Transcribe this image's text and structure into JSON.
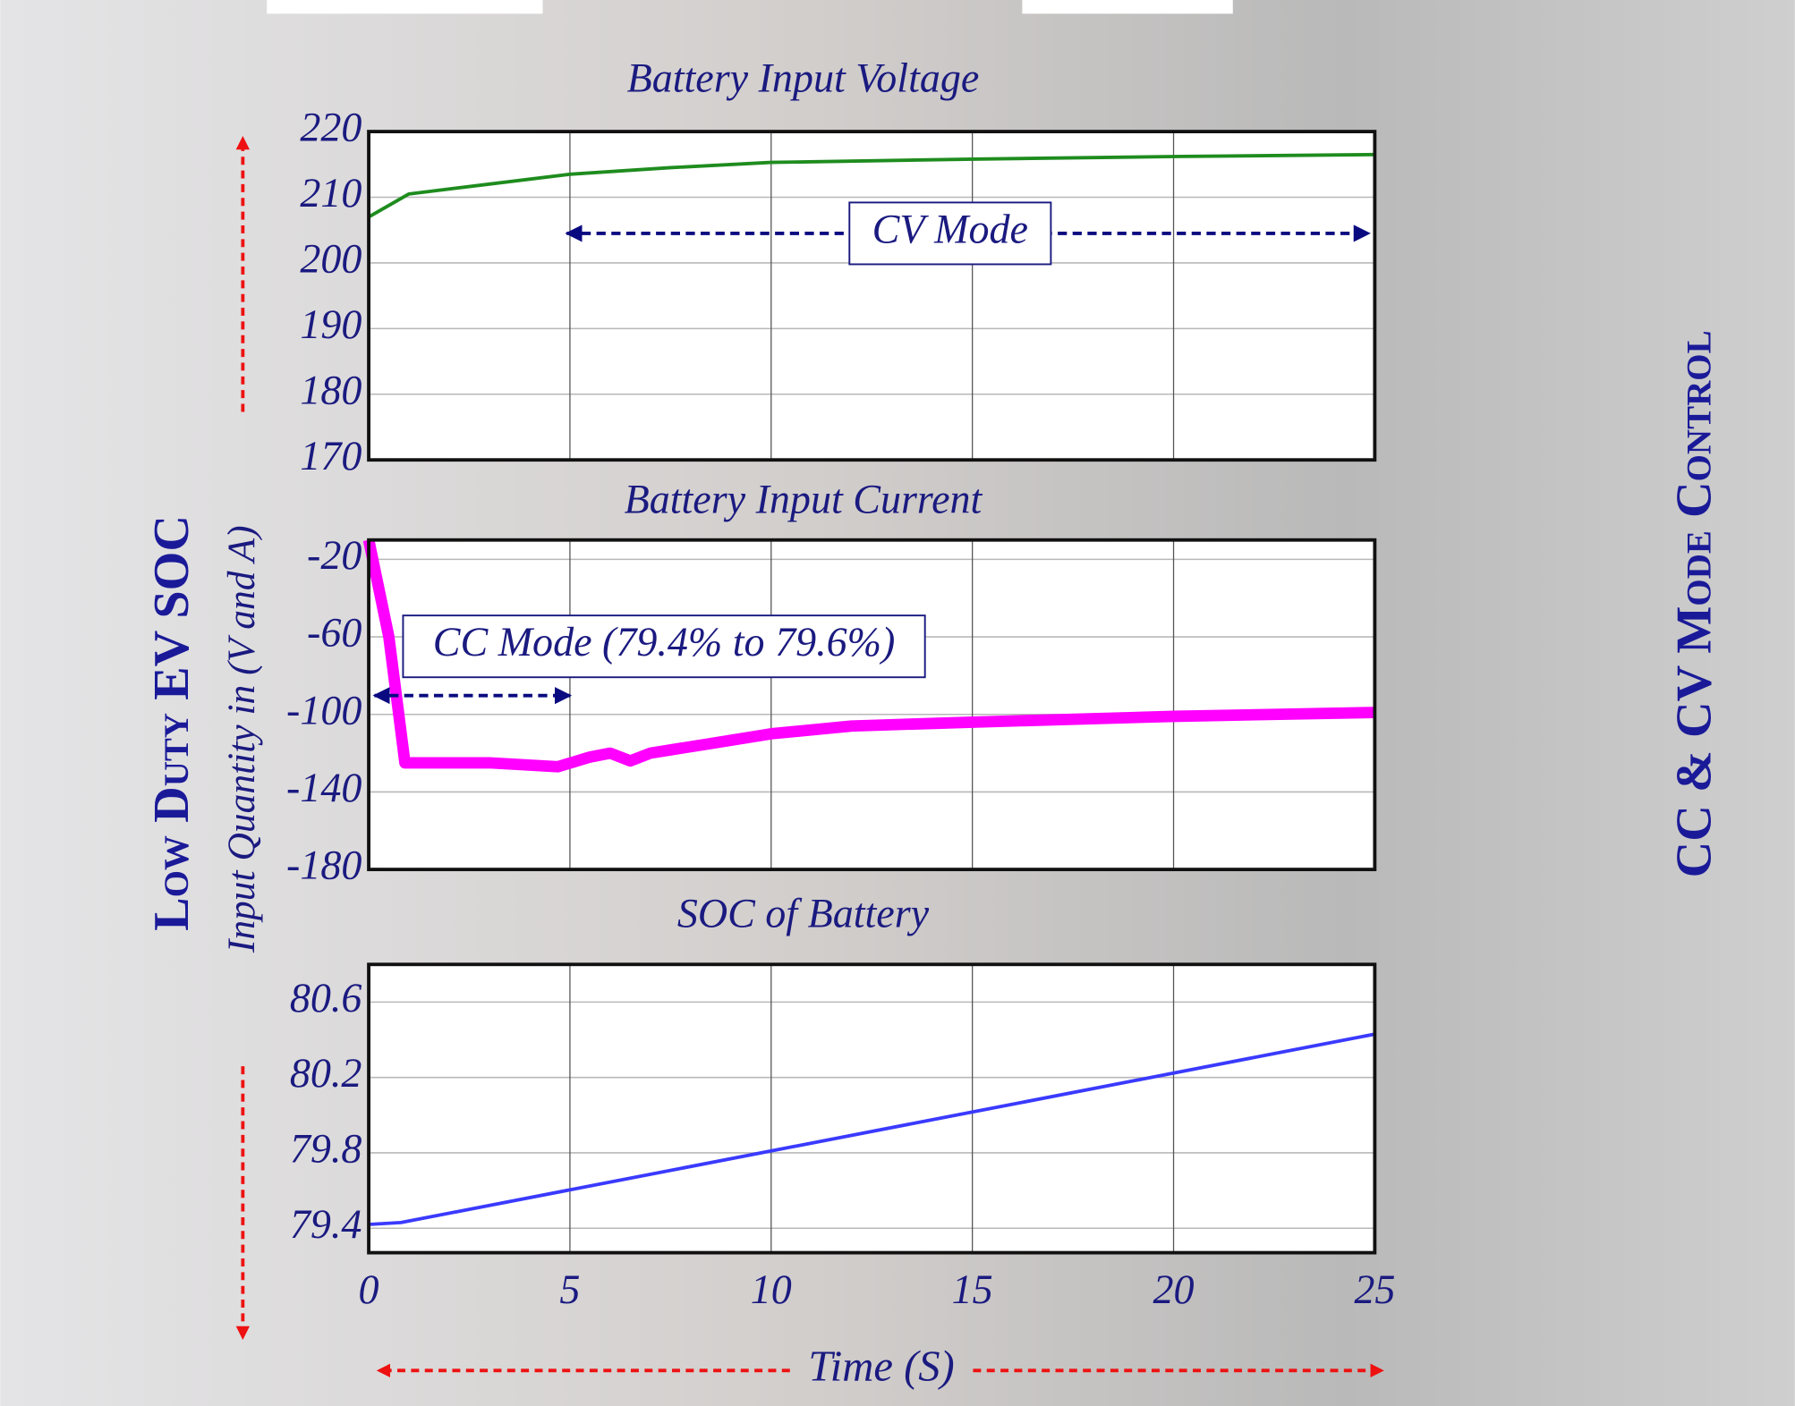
{
  "figure": {
    "left_label": "Low Duty EV SOC",
    "right_label": "CC & CV Mode Control",
    "ylabel": "Input Quantity in (V and A)"
  },
  "chart_data": [
    {
      "type": "line",
      "title": "Battery Input Voltage",
      "annotation": "CV Mode",
      "x": [
        0,
        1,
        3,
        5,
        7.5,
        10,
        15,
        20,
        25
      ],
      "series": [
        {
          "color": "#1e8c1e",
          "values": [
            207,
            210.5,
            212,
            213.5,
            214.5,
            215.3,
            215.8,
            216.2,
            216.5
          ]
        }
      ],
      "xlim": [
        0,
        25
      ],
      "xticks": [
        0,
        5,
        10,
        15,
        20,
        25
      ],
      "ylim": [
        170,
        220
      ],
      "yticks": [
        170,
        180,
        190,
        200,
        210,
        220
      ],
      "grid": true
    },
    {
      "type": "line",
      "title": "Battery Input Current",
      "annotation": "CC Mode (79.4% to 79.6%)",
      "x": [
        0,
        0.5,
        0.9,
        3,
        4.7,
        5.5,
        6,
        6.5,
        7,
        8.5,
        10,
        12,
        15,
        20,
        25
      ],
      "series": [
        {
          "color": "#ff00ff",
          "values": [
            -10,
            -60,
            -125,
            -125,
            -127,
            -122,
            -120,
            -124,
            -120,
            -115,
            -110,
            -106,
            -104,
            -101,
            -99
          ]
        }
      ],
      "xlim": [
        0,
        25
      ],
      "xticks": [
        0,
        5,
        10,
        15,
        20,
        25
      ],
      "ylim": [
        -180,
        -10
      ],
      "yticks": [
        -180,
        -140,
        -100,
        -60,
        -20
      ],
      "grid": true
    },
    {
      "type": "line",
      "title": "SOC of Battery",
      "xlabel": "Time (S)",
      "x": [
        0,
        0.8,
        25
      ],
      "series": [
        {
          "color": "#3a3aff",
          "values": [
            79.42,
            79.43,
            80.43
          ]
        }
      ],
      "xlim": [
        0,
        25
      ],
      "xticks": [
        0,
        5,
        10,
        15,
        20,
        25
      ],
      "ylim": [
        79.27,
        80.8
      ],
      "yticks": [
        79.4,
        79.8,
        80.2,
        80.6
      ],
      "grid": true
    }
  ]
}
